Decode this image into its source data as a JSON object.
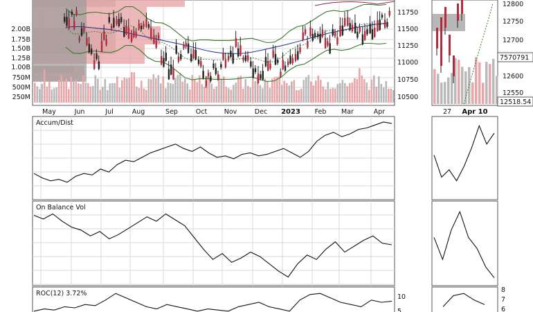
{
  "chart_data": {
    "type": "line",
    "price_panel": {
      "left_volume_ticks": [
        "2.00B",
        "1.75B",
        "1.50B",
        "1.25B",
        "1.00B",
        "750M",
        "500M",
        "250M"
      ],
      "right_price_ticks": [
        "11750",
        "11500",
        "11250",
        "11000",
        "10750",
        "10500"
      ],
      "month_labels": [
        "May",
        "Jun",
        "Jul",
        "Aug",
        "Sep",
        "Oct",
        "Nov",
        "Dec",
        "2023",
        "Feb",
        "Mar",
        "Apr"
      ],
      "zoom_x_labels": [
        "27",
        "Apr 10"
      ],
      "zoom_price_ticks": [
        "12800",
        "12750",
        "12700",
        "12650",
        "12600",
        "12550"
      ],
      "zoom_badges": [
        "7570791",
        "12518.54"
      ],
      "ylim": [
        10400,
        11850
      ]
    },
    "accum_dist": {
      "label": "Accum/Dist",
      "values": [
        0.3,
        0.24,
        0.2,
        0.22,
        0.18,
        0.26,
        0.3,
        0.28,
        0.36,
        0.32,
        0.42,
        0.48,
        0.46,
        0.52,
        0.58,
        0.62,
        0.66,
        0.7,
        0.64,
        0.6,
        0.66,
        0.58,
        0.52,
        0.54,
        0.5,
        0.56,
        0.58,
        0.54,
        0.56,
        0.6,
        0.64,
        0.58,
        0.52,
        0.6,
        0.74,
        0.82,
        0.86,
        0.8,
        0.84,
        0.9,
        0.92,
        0.96,
        1.0,
        0.98
      ],
      "zoom_values": [
        0.55,
        0.25,
        0.35,
        0.2,
        0.4,
        0.65,
        0.95,
        0.7,
        0.85
      ]
    },
    "on_balance_vol": {
      "label": "On Balance Vol",
      "values": [
        0.9,
        0.85,
        0.92,
        0.82,
        0.74,
        0.7,
        0.62,
        0.68,
        0.58,
        0.64,
        0.72,
        0.8,
        0.88,
        0.82,
        0.92,
        0.84,
        0.76,
        0.6,
        0.44,
        0.3,
        0.38,
        0.26,
        0.32,
        0.4,
        0.34,
        0.24,
        0.14,
        0.06,
        0.24,
        0.36,
        0.3,
        0.44,
        0.54,
        0.4,
        0.48,
        0.56,
        0.62,
        0.52,
        0.5
      ],
      "zoom_values": [
        0.6,
        0.3,
        0.7,
        0.95,
        0.6,
        0.45,
        0.2,
        0.05
      ]
    },
    "roc": {
      "label": "ROC(12) 3.72%",
      "right_ticks": [
        "10",
        "5"
      ],
      "zoom_right_ticks": [
        "8",
        "7",
        "6"
      ],
      "values": [
        0.1,
        0.2,
        0.15,
        0.3,
        0.25,
        0.4,
        0.35,
        0.6,
        0.9,
        0.7,
        0.5,
        0.3,
        0.2,
        0.4,
        0.3,
        0.2,
        0.1,
        0.2,
        0.15,
        0.1,
        0.3,
        0.4,
        0.5,
        0.3,
        0.2,
        0.1,
        0.6,
        0.85,
        0.9,
        0.7,
        0.5,
        0.4,
        0.3,
        0.6,
        0.5,
        0.55
      ],
      "zoom_values": [
        0.3,
        0.8,
        0.9,
        0.6,
        0.4
      ]
    }
  }
}
